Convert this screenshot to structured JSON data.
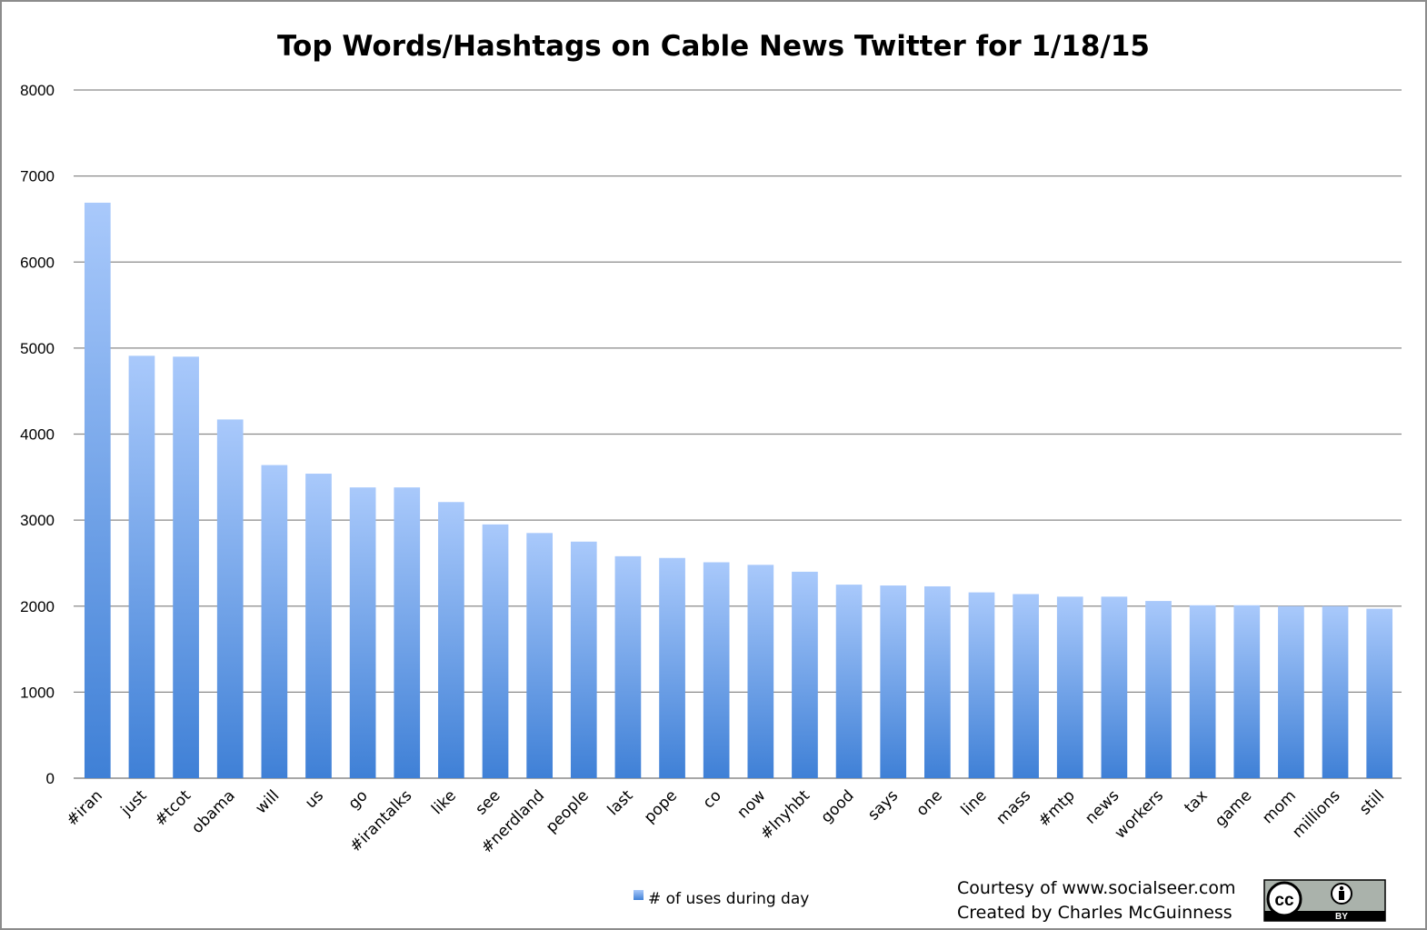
{
  "chart_data": {
    "type": "bar",
    "title": "Top Words/Hashtags on Cable News Twitter for 1/18/15",
    "xlabel": "",
    "ylabel": "",
    "ylim": [
      0,
      8000
    ],
    "yticks": [
      0,
      1000,
      2000,
      3000,
      4000,
      5000,
      6000,
      7000,
      8000
    ],
    "grid": true,
    "legend_position": "bottom",
    "categories": [
      "#iran",
      "just",
      "#tcot",
      "obama",
      "will",
      "us",
      "go",
      "#irantalks",
      "like",
      "see",
      "#nerdland",
      "people",
      "last",
      "pope",
      "co",
      "now",
      "#lnyhbt",
      "good",
      "says",
      "one",
      "line",
      "mass",
      "#mtp",
      "news",
      "workers",
      "tax",
      "game",
      "mom",
      "millions",
      "still"
    ],
    "series": [
      {
        "name": "# of uses during day",
        "color": "#5b93e0",
        "values": [
          6690,
          4910,
          4900,
          4170,
          3640,
          3540,
          3380,
          3380,
          3210,
          2950,
          2850,
          2750,
          2580,
          2560,
          2510,
          2480,
          2400,
          2250,
          2240,
          2230,
          2160,
          2140,
          2110,
          2110,
          2060,
          2010,
          2010,
          2000,
          2000,
          1970
        ]
      }
    ]
  },
  "credits": {
    "line1": "Courtesy of www.socialseer.com",
    "line2": "Created by Charles McGuinness"
  },
  "license_badge": {
    "icon": "cc-by-icon",
    "cc_text": "cc",
    "by_text": "BY"
  }
}
